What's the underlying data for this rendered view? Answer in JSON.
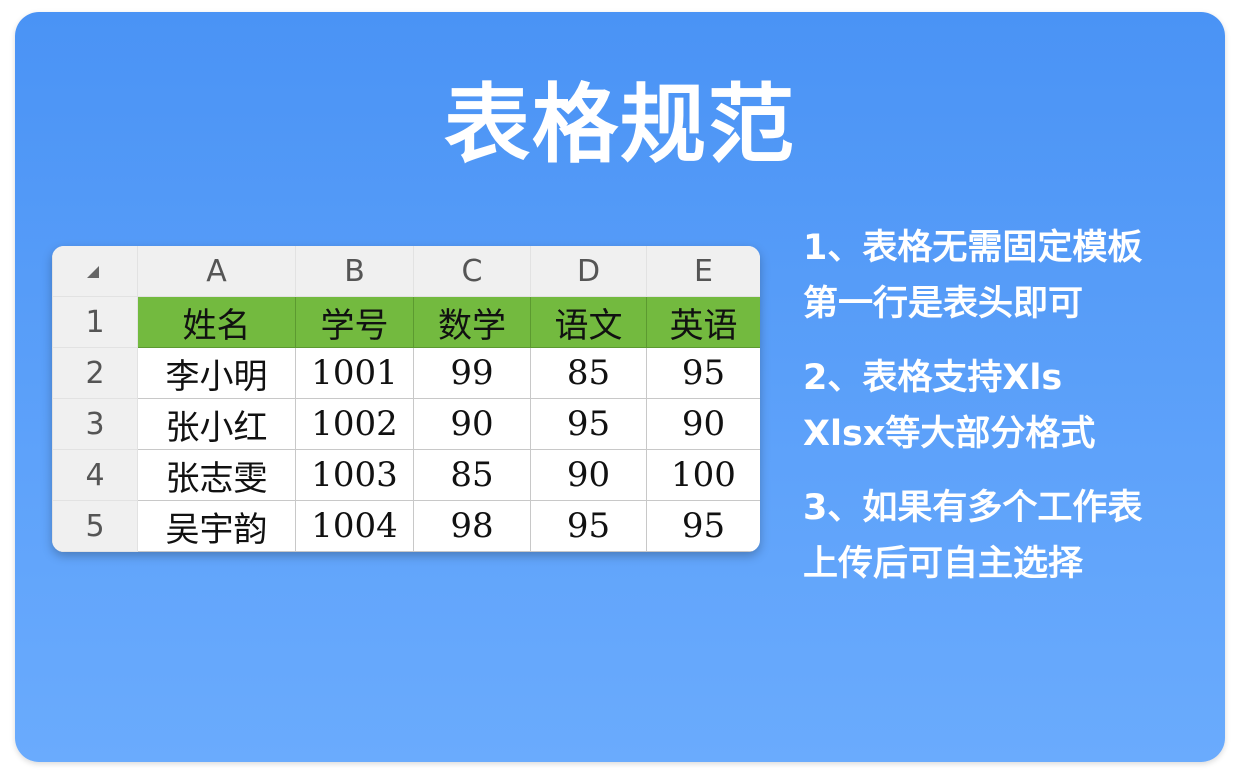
{
  "title": "表格规范",
  "colors": {
    "background_top": "#4a93f5",
    "background_bottom": "#6aabfd",
    "header_green": "#73ba3f"
  },
  "sheet": {
    "corner_icon": "select-all-triangle-icon",
    "column_headers": [
      "A",
      "B",
      "C",
      "D",
      "E"
    ],
    "row_numbers": [
      "1",
      "2",
      "3",
      "4",
      "5"
    ],
    "rows": [
      [
        "姓名",
        "学号",
        "数学",
        "语文",
        "英语"
      ],
      [
        "李小明",
        "1001",
        "99",
        "85",
        "95"
      ],
      [
        "张小红",
        "1002",
        "90",
        "95",
        "90"
      ],
      [
        "张志雯",
        "1003",
        "85",
        "90",
        "100"
      ],
      [
        "吴宇韵",
        "1004",
        "98",
        "95",
        "95"
      ]
    ]
  },
  "notes": [
    {
      "line1": "1、表格无需固定模板",
      "line2": "第一行是表头即可"
    },
    {
      "line1": "2、表格支持Xls",
      "line2": "Xlsx等大部分格式"
    },
    {
      "line1": "3、如果有多个工作表",
      "line2": "上传后可自主选择"
    }
  ]
}
